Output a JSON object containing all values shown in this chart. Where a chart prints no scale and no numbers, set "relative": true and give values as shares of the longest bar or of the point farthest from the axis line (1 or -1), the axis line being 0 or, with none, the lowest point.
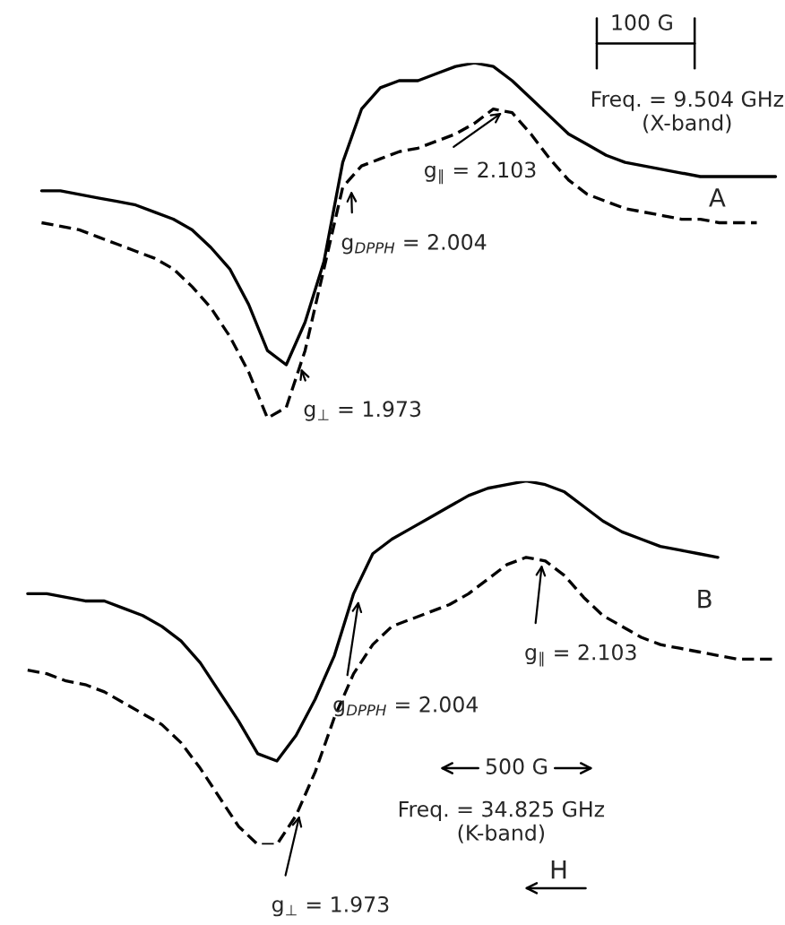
{
  "chart_data": [
    {
      "type": "line",
      "relative": true,
      "categories": [
        null,
        null,
        null,
        null,
        null,
        null,
        null,
        null,
        null,
        null,
        null,
        null,
        null,
        null,
        null,
        null,
        null,
        null,
        null,
        null,
        null,
        null,
        null,
        null,
        null,
        null,
        null,
        null,
        null,
        null,
        null,
        null,
        null,
        null,
        null,
        null,
        null,
        null,
        null,
        null
      ],
      "series": [
        {
          "color": "#000000",
          "line_style": "solid",
          "values": [
            0.64,
            0.64,
            0.63,
            0.62,
            0.61,
            0.6,
            0.58,
            0.56,
            0.53,
            0.48,
            0.42,
            0.32,
            0.19,
            0.15,
            0.27,
            0.44,
            0.72,
            0.87,
            0.93,
            0.95,
            0.95,
            0.97,
            0.99,
            1.0,
            0.99,
            0.95,
            0.9,
            0.85,
            0.8,
            0.77,
            0.74,
            0.72,
            0.71,
            0.7,
            0.69,
            0.68,
            0.68,
            0.68,
            0.68,
            0.68
          ]
        },
        {
          "color": "#000000",
          "line_style": "dashed",
          "values": [
            0.55,
            0.54,
            0.53,
            0.51,
            0.49,
            0.47,
            0.45,
            0.42,
            0.37,
            0.31,
            0.23,
            0.13,
            0.0,
            0.03,
            0.19,
            0.42,
            0.65,
            0.71,
            0.73,
            0.75,
            0.76,
            0.78,
            0.8,
            0.83,
            0.87,
            0.86,
            0.8,
            0.73,
            0.67,
            0.63,
            0.61,
            0.59,
            0.58,
            0.57,
            0.56,
            0.56,
            0.55,
            0.55,
            0.55,
            null
          ]
        }
      ],
      "annotations": [
        "100 G",
        "Freq. = 9.504 GHz\n(X-band)",
        "A",
        "g$_{∥}$ = 2.103",
        "g$_{DPPH}$ = 2.004",
        "g$_{⊥}$ = 1.973"
      ]
    },
    {
      "type": "line",
      "relative": true,
      "categories": [
        null,
        null,
        null,
        null,
        null,
        null,
        null,
        null,
        null,
        null,
        null,
        null,
        null,
        null,
        null,
        null,
        null,
        null,
        null,
        null,
        null,
        null,
        null,
        null,
        null,
        null,
        null,
        null,
        null,
        null,
        null,
        null,
        null,
        null,
        null,
        null,
        null,
        null,
        null,
        null
      ],
      "series": [
        {
          "color": "#000000",
          "line_style": "solid",
          "values": [
            0.69,
            0.69,
            0.68,
            0.67,
            0.67,
            0.65,
            0.63,
            0.6,
            0.56,
            0.5,
            0.42,
            0.34,
            0.25,
            0.23,
            0.3,
            0.4,
            0.52,
            0.69,
            0.8,
            0.84,
            0.87,
            0.9,
            0.93,
            0.96,
            0.98,
            0.99,
            1.0,
            0.99,
            0.97,
            0.93,
            0.89,
            0.86,
            0.84,
            0.82,
            0.81,
            0.8,
            0.79,
            null,
            null,
            null
          ]
        },
        {
          "color": "#000000",
          "line_style": "dashed",
          "values": [
            0.48,
            0.47,
            0.45,
            0.44,
            0.42,
            0.39,
            0.36,
            0.33,
            0.28,
            0.21,
            0.13,
            0.05,
            0.0,
            0.0,
            0.08,
            0.2,
            0.35,
            0.47,
            0.55,
            0.6,
            0.62,
            0.64,
            0.66,
            0.69,
            0.73,
            0.77,
            0.79,
            0.78,
            0.74,
            0.68,
            0.63,
            0.6,
            0.57,
            0.55,
            0.54,
            0.53,
            0.52,
            0.51,
            0.51,
            0.51
          ]
        }
      ],
      "annotations": [
        "B",
        "g$_{∥}$ = 2.103",
        "g$_{DPPH}$ = 2.004",
        "500 G",
        "Freq. = 34.825 GHz\n(K-band)",
        "g$_{⊥}$ = 1.973",
        "H"
      ]
    }
  ]
}
